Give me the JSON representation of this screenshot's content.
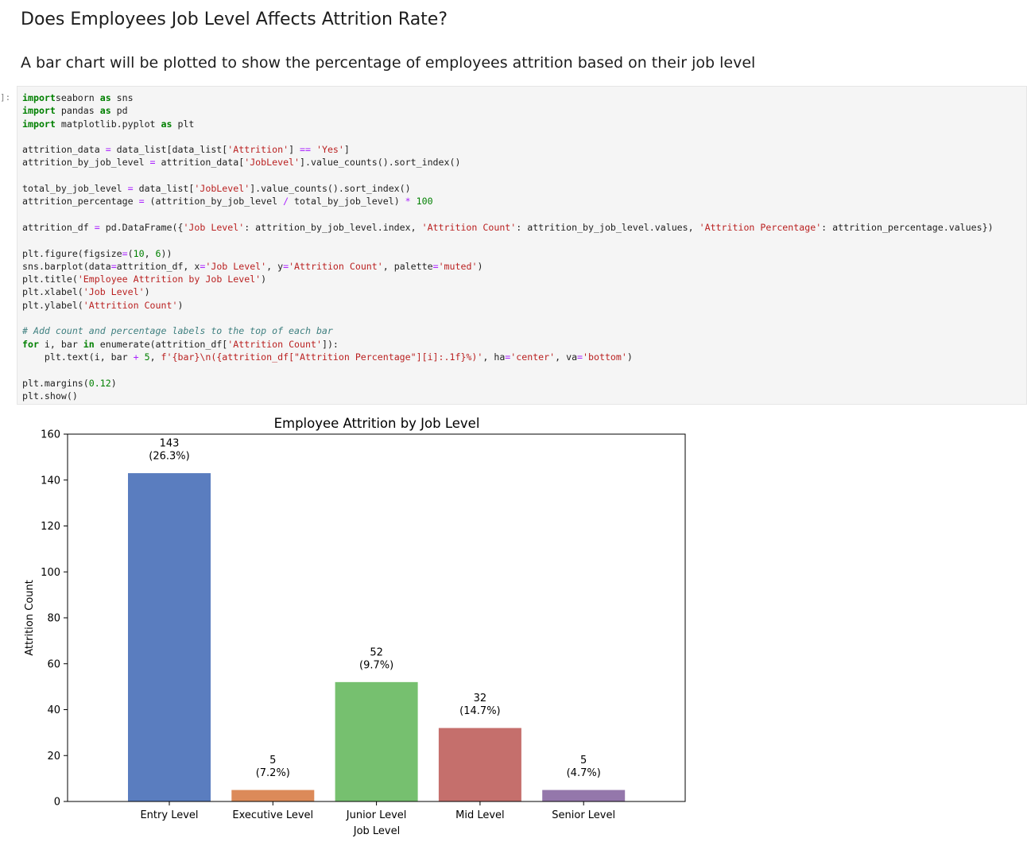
{
  "notebook": {
    "heading": "Does Employees Job Level Affects Attrition Rate?",
    "subheading": "A bar chart will be plotted to show the percentage of employees attrition based on their job level",
    "prompt": "]:",
    "code_lines": [
      [
        [
          "kw",
          "import"
        ],
        [
          "",
          "seaborn "
        ],
        [
          "kw",
          "as"
        ],
        [
          "",
          " sns"
        ]
      ],
      [
        [
          "kw",
          "import"
        ],
        [
          "",
          " pandas "
        ],
        [
          "kw",
          "as"
        ],
        [
          "",
          " pd"
        ]
      ],
      [
        [
          "kw",
          "import"
        ],
        [
          "",
          " matplotlib.pyplot "
        ],
        [
          "kw",
          "as"
        ],
        [
          "",
          " plt"
        ]
      ],
      [],
      [
        [
          "",
          "attrition_data "
        ],
        [
          "op",
          "="
        ],
        [
          "",
          " data_list[data_list["
        ],
        [
          "str",
          "'Attrition'"
        ],
        [
          "",
          "] "
        ],
        [
          "op",
          "=="
        ],
        [
          "",
          " "
        ],
        [
          "str",
          "'Yes'"
        ],
        [
          "",
          "]"
        ]
      ],
      [
        [
          "",
          "attrition_by_job_level "
        ],
        [
          "op",
          "="
        ],
        [
          "",
          " attrition_data["
        ],
        [
          "str",
          "'JobLevel'"
        ],
        [
          "",
          "].value_counts().sort_index()"
        ]
      ],
      [],
      [
        [
          "",
          "total_by_job_level "
        ],
        [
          "op",
          "="
        ],
        [
          "",
          " data_list["
        ],
        [
          "str",
          "'JobLevel'"
        ],
        [
          "",
          "].value_counts().sort_index()"
        ]
      ],
      [
        [
          "",
          "attrition_percentage "
        ],
        [
          "op",
          "="
        ],
        [
          "",
          " (attrition_by_job_level "
        ],
        [
          "op",
          "/"
        ],
        [
          "",
          " total_by_job_level) "
        ],
        [
          "op",
          "*"
        ],
        [
          "",
          " "
        ],
        [
          "num",
          "100"
        ]
      ],
      [],
      [
        [
          "",
          "attrition_df "
        ],
        [
          "op",
          "="
        ],
        [
          "",
          " pd.DataFrame({"
        ],
        [
          "str",
          "'Job Level'"
        ],
        [
          "",
          ": attrition_by_job_level.index, "
        ],
        [
          "str",
          "'Attrition Count'"
        ],
        [
          "",
          ": attrition_by_job_level.values, "
        ],
        [
          "str",
          "'Attrition Percentage'"
        ],
        [
          "",
          ": attrition_percentage.values})"
        ]
      ],
      [],
      [
        [
          "",
          "plt.figure(figsize"
        ],
        [
          "op",
          "="
        ],
        [
          "",
          "("
        ],
        [
          "num",
          "10"
        ],
        [
          "",
          ", "
        ],
        [
          "num",
          "6"
        ],
        [
          "",
          "))"
        ]
      ],
      [
        [
          "",
          "sns.barplot(data"
        ],
        [
          "op",
          "="
        ],
        [
          "",
          "attrition_df, x"
        ],
        [
          "op",
          "="
        ],
        [
          "str",
          "'Job Level'"
        ],
        [
          "",
          ", y"
        ],
        [
          "op",
          "="
        ],
        [
          "str",
          "'Attrition Count'"
        ],
        [
          "",
          ", palette"
        ],
        [
          "op",
          "="
        ],
        [
          "str",
          "'muted'"
        ],
        [
          "",
          ")"
        ]
      ],
      [
        [
          "",
          "plt.title("
        ],
        [
          "str",
          "'Employee Attrition by Job Level'"
        ],
        [
          "",
          ")"
        ]
      ],
      [
        [
          "",
          "plt.xlabel("
        ],
        [
          "str",
          "'Job Level'"
        ],
        [
          "",
          ")"
        ]
      ],
      [
        [
          "",
          "plt.ylabel("
        ],
        [
          "str",
          "'Attrition Count'"
        ],
        [
          "",
          ")"
        ]
      ],
      [],
      [
        [
          "cm",
          "# Add count and percentage labels to the top of each bar"
        ]
      ],
      [
        [
          "kw",
          "for"
        ],
        [
          "",
          " i, bar "
        ],
        [
          "kw",
          "in"
        ],
        [
          "",
          " enumerate(attrition_df["
        ],
        [
          "str",
          "'Attrition Count'"
        ],
        [
          "",
          "]):"
        ]
      ],
      [
        [
          "",
          "    plt.text(i, bar "
        ],
        [
          "op",
          "+"
        ],
        [
          "",
          " "
        ],
        [
          "num",
          "5"
        ],
        [
          "",
          ", "
        ],
        [
          "str",
          "f'{bar}\\n({attrition_df[\"Attrition Percentage\"][i]:.1f}%)'"
        ],
        [
          "",
          ", ha"
        ],
        [
          "op",
          "="
        ],
        [
          "str",
          "'center'"
        ],
        [
          "",
          ", va"
        ],
        [
          "op",
          "="
        ],
        [
          "str",
          "'bottom'"
        ],
        [
          "",
          ")"
        ]
      ],
      [],
      [
        [
          "",
          "plt.margins("
        ],
        [
          "num",
          "0.12"
        ],
        [
          "",
          ")"
        ]
      ],
      [
        [
          "",
          "plt.show()"
        ]
      ]
    ]
  },
  "chart_data": {
    "type": "bar",
    "title": "Employee Attrition by Job Level",
    "xlabel": "Job Level",
    "ylabel": "Attrition Count",
    "categories": [
      "Entry Level",
      "Executive Level",
      "Junior Level",
      "Mid Level",
      "Senior Level"
    ],
    "values": [
      143,
      5,
      52,
      32,
      5
    ],
    "percentages": [
      "26.3%",
      "7.2%",
      "9.7%",
      "14.7%",
      "4.7%"
    ],
    "colors": [
      "#5a7dbf",
      "#dc8a59",
      "#76c06f",
      "#c56f6c",
      "#9477ab"
    ],
    "ylim": [
      0,
      160
    ],
    "yticks": [
      0,
      20,
      40,
      60,
      80,
      100,
      120,
      140,
      160
    ],
    "grid": false,
    "legend": "none"
  }
}
